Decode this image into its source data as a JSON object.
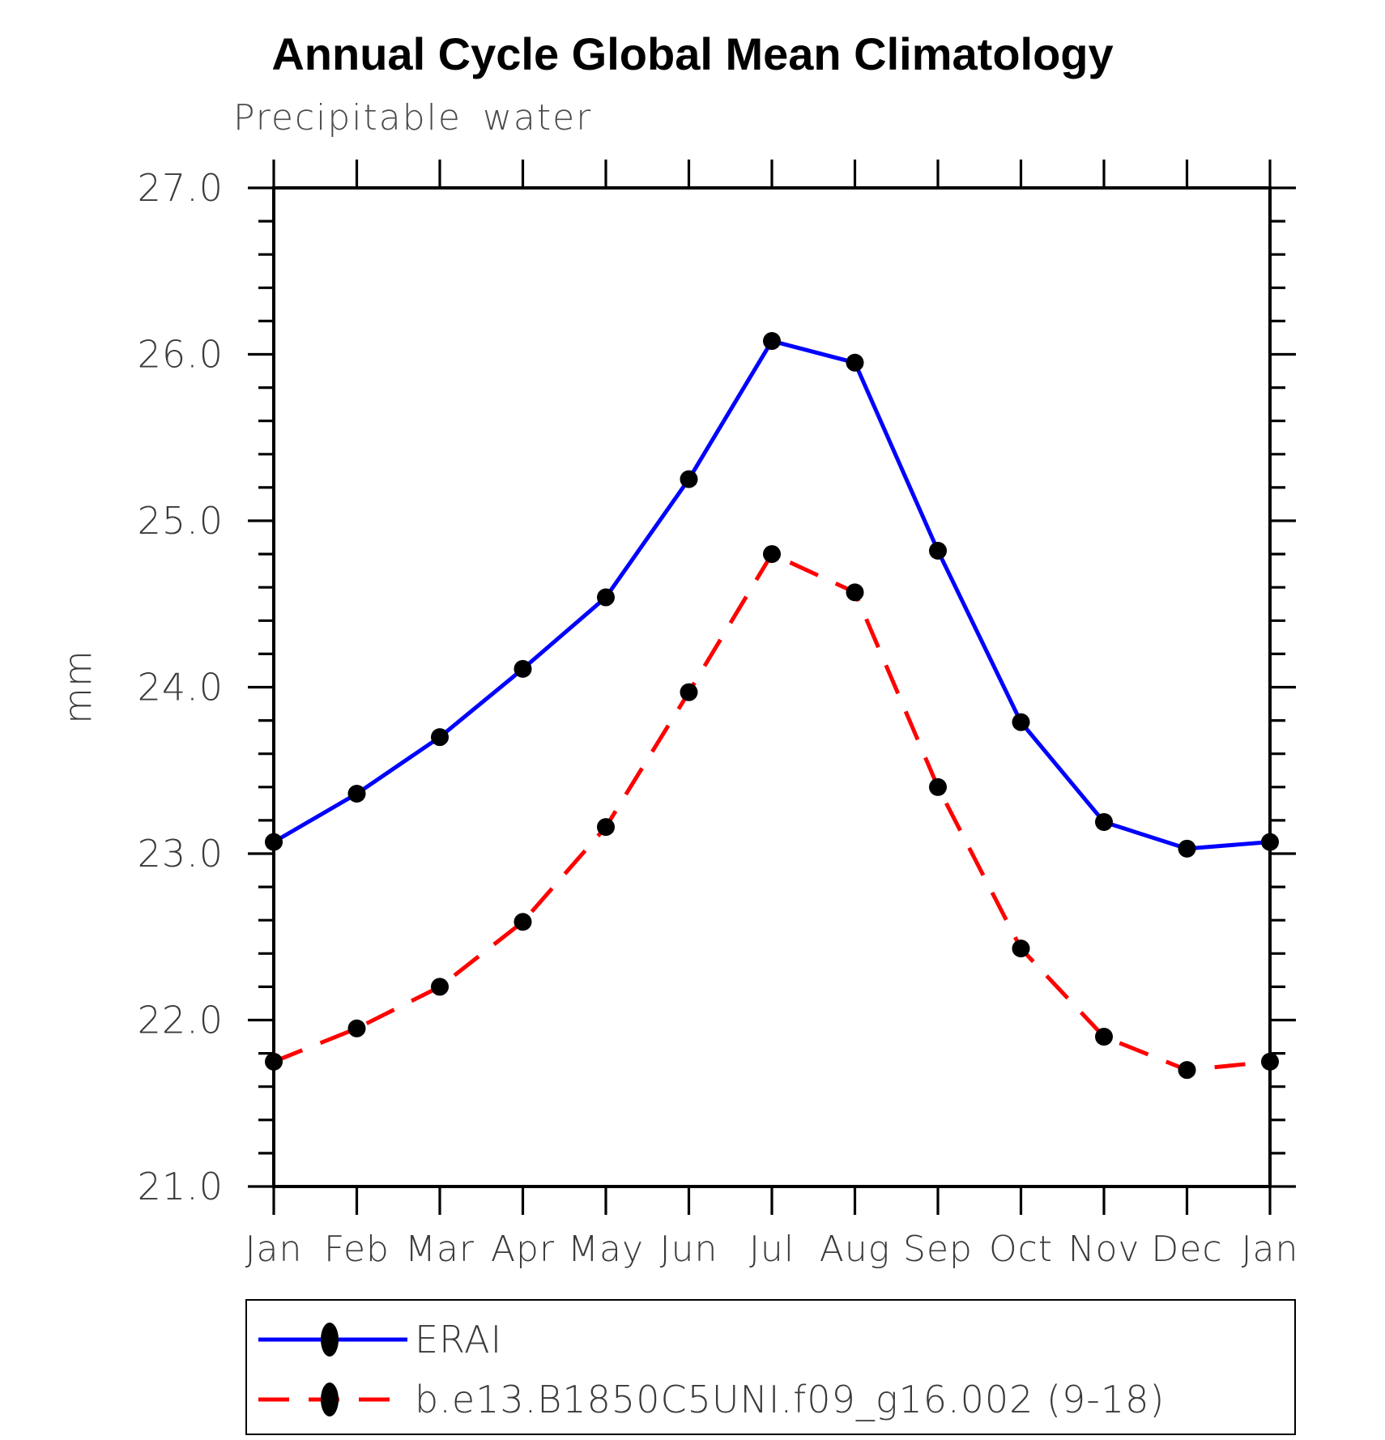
{
  "header": {
    "title": "Annual Cycle Global Mean Climatology",
    "subtitle": "Precipitable water"
  },
  "axes": {
    "ylabel": "mm",
    "y_tick_labels": [
      "21.0",
      "22.0",
      "23.0",
      "24.0",
      "25.0",
      "26.0",
      "27.0"
    ],
    "x_tick_labels": [
      "Jan",
      "Feb",
      "Mar",
      "Apr",
      "May",
      "Jun",
      "Jul",
      "Aug",
      "Sep",
      "Oct",
      "Nov",
      "Dec",
      "Jan"
    ]
  },
  "chart_data": {
    "type": "line",
    "title": "Annual Cycle Global Mean Climatology",
    "subtitle": "Precipitable water",
    "ylabel": "mm",
    "categories": [
      "Jan",
      "Feb",
      "Mar",
      "Apr",
      "May",
      "Jun",
      "Jul",
      "Aug",
      "Sep",
      "Oct",
      "Nov",
      "Dec",
      "Jan"
    ],
    "series": [
      {
        "name": "ERAI",
        "color": "#0000ff",
        "line_style": "solid",
        "marker": "filled-circle",
        "marker_color": "#000000",
        "values": [
          23.07,
          23.36,
          23.7,
          24.11,
          24.54,
          25.25,
          26.08,
          25.95,
          24.82,
          23.79,
          23.19,
          23.03,
          23.07
        ]
      },
      {
        "name": "b.e13.B1850C5UNI.f09_g16.002 (9-18)",
        "color": "#ff0000",
        "line_style": "dashed",
        "marker": "filled-circle",
        "marker_color": "#000000",
        "values": [
          21.75,
          21.95,
          22.2,
          22.59,
          23.16,
          23.97,
          24.8,
          24.57,
          23.4,
          22.43,
          21.9,
          21.7,
          21.75
        ]
      }
    ],
    "ylim": [
      21.0,
      27.0
    ],
    "ytick_interval": 1.0,
    "y_minor_interval": 0.2,
    "grid": false,
    "legend_position": "bottom"
  },
  "legend": {
    "entries": [
      {
        "label": "ERAI"
      },
      {
        "label": "b.e13.B1850C5UNI.f09_g16.002 (9-18)"
      }
    ]
  }
}
